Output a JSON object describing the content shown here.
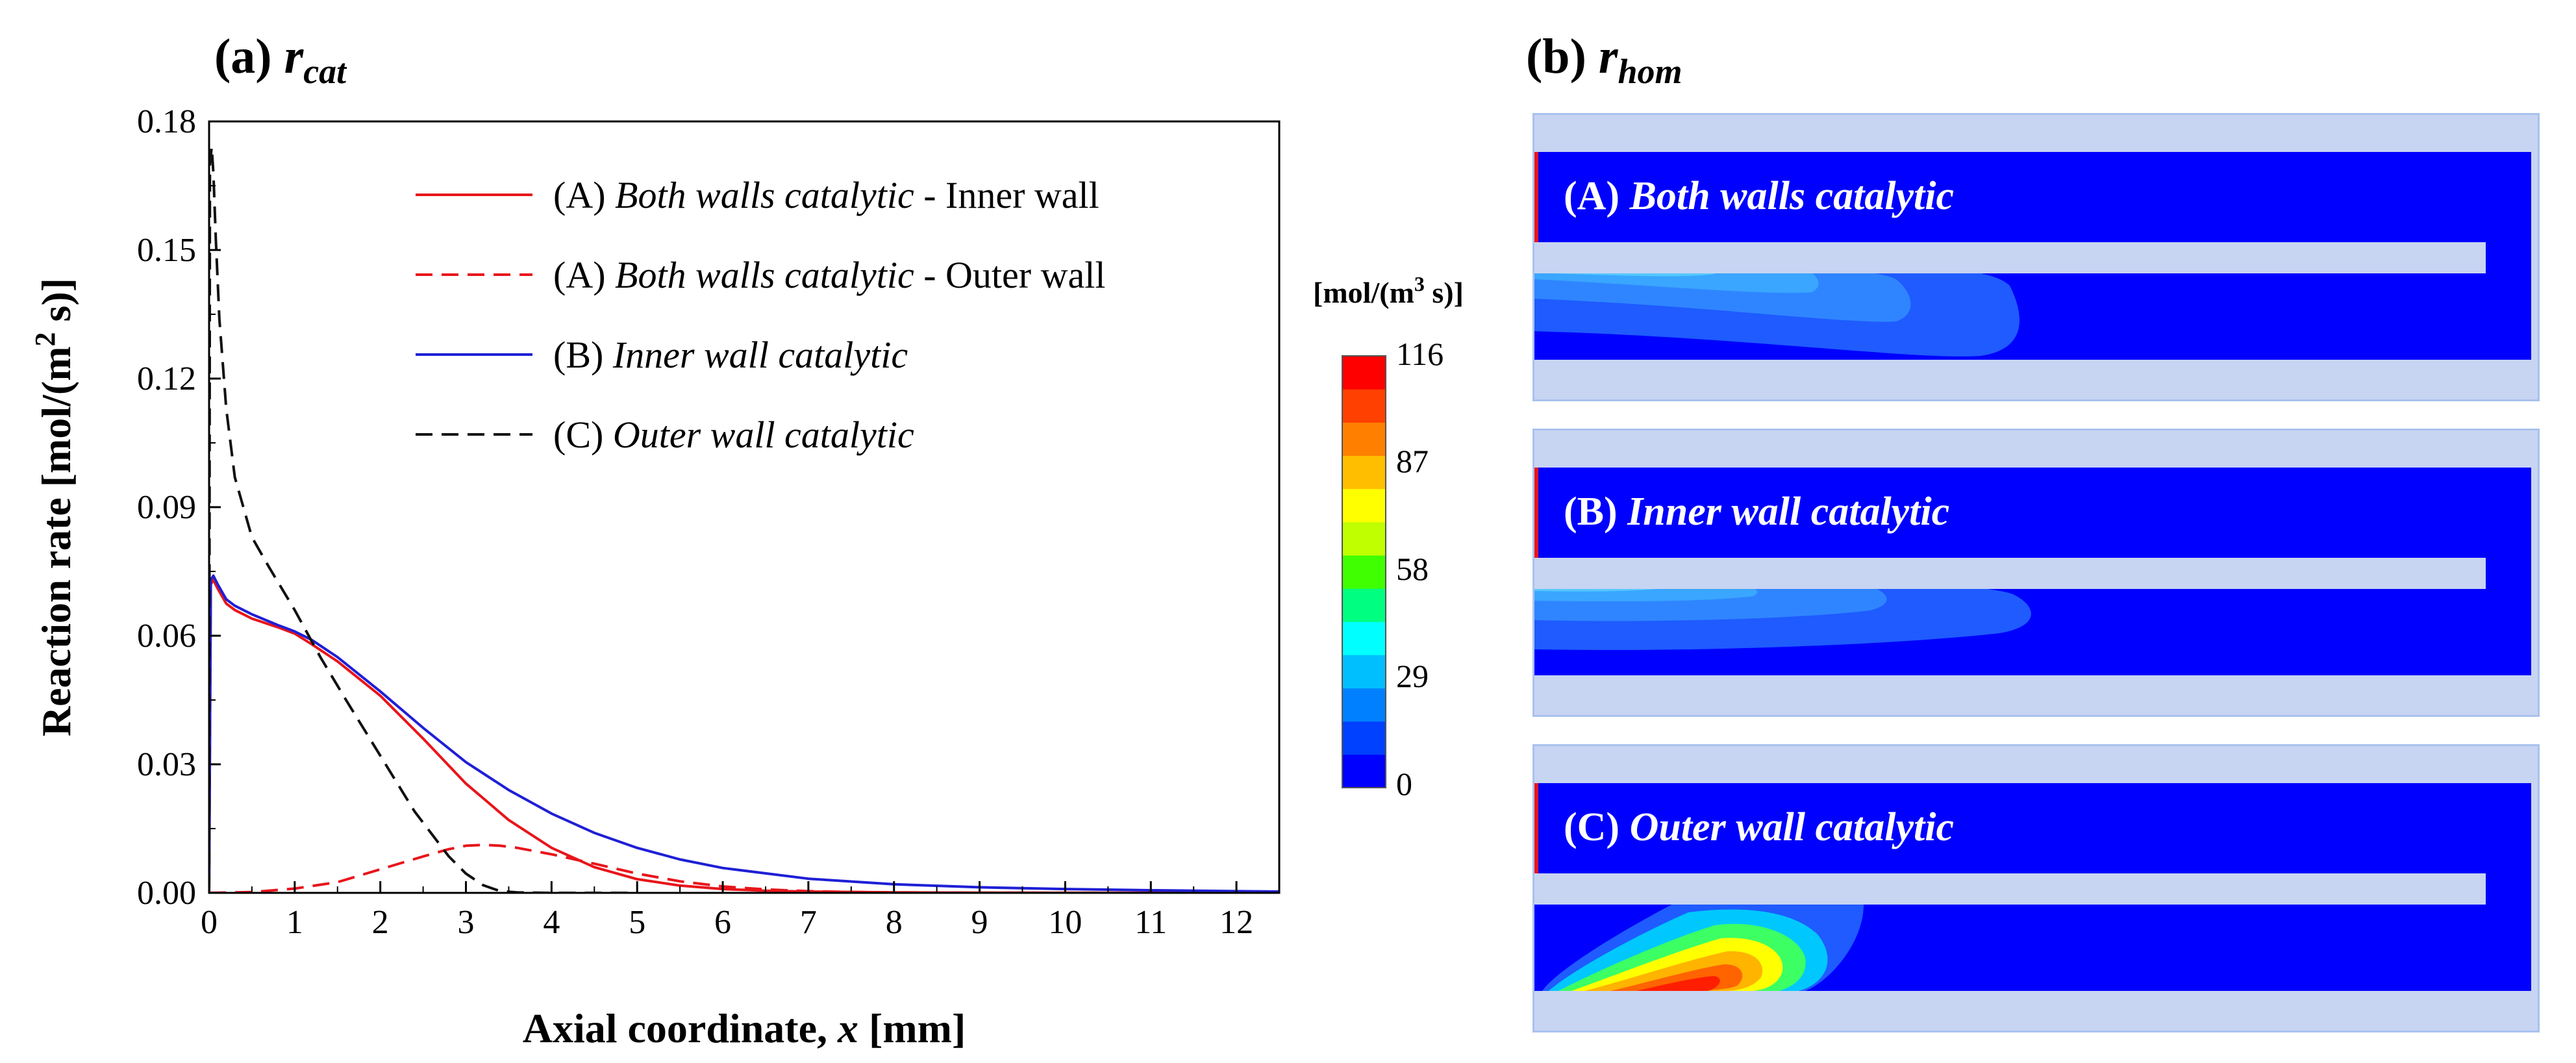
{
  "panel_a": {
    "label": "(a) ",
    "title_main": "r",
    "title_sub": "cat"
  },
  "panel_b": {
    "label": "(b) ",
    "title_main": "r",
    "title_sub": "hom",
    "colorbar": {
      "unit_prefix": "[mol/(m",
      "unit_sup": "3",
      "unit_suffix": " s)]",
      "ticks": [
        "116",
        "87",
        "58",
        "29",
        "0"
      ],
      "min": 0,
      "max": 116,
      "colors": [
        "#0000ff",
        "#0040ff",
        "#0080ff",
        "#00bfff",
        "#00ffff",
        "#00ff80",
        "#40ff00",
        "#bfff00",
        "#ffff00",
        "#ffbf00",
        "#ff8000",
        "#ff4000",
        "#ff0000"
      ]
    },
    "contours": [
      {
        "label_prefix": "(A) ",
        "label_italic": "Both walls catalytic"
      },
      {
        "label_prefix": "(B) ",
        "label_italic": "Inner wall catalytic"
      },
      {
        "label_prefix": "(C) ",
        "label_italic": "Outer wall catalytic"
      }
    ],
    "colors": {
      "background": "#0000ff",
      "wall": "#c7d4f2",
      "frame": "#a9c2ee"
    }
  },
  "chart_data": {
    "type": "line",
    "title": "(a) r_cat",
    "xlabel_prefix": "Axial coordinate, ",
    "xlabel_var": "x",
    "xlabel_suffix": " [mm]",
    "ylabel_prefix": "Reaction rate [mol/(m",
    "ylabel_sup": "2",
    "ylabel_suffix": " s)]",
    "xlim": [
      0,
      12.5
    ],
    "ylim": [
      0,
      0.18
    ],
    "xticks": [
      0,
      1,
      2,
      3,
      4,
      5,
      6,
      7,
      8,
      9,
      10,
      11,
      12
    ],
    "xtick_labels": [
      "0",
      "1",
      "2",
      "3",
      "4",
      "5",
      "6",
      "7",
      "8",
      "9",
      "10",
      "11",
      "12"
    ],
    "yticks": [
      0,
      0.03,
      0.06,
      0.09,
      0.12,
      0.15,
      0.18
    ],
    "ytick_labels": [
      "0.00",
      "0.03",
      "0.06",
      "0.09",
      "0.12",
      "0.15",
      "0.18"
    ],
    "grid": false,
    "legend_position": "top-right",
    "series": [
      {
        "name": "(A) Both walls catalytic - Inner wall",
        "legend_prefix": "(A) ",
        "legend_italic": "Both walls catalytic",
        "legend_suffix": " - Inner wall",
        "color": "#e8151b",
        "dash": "solid",
        "x": [
          0,
          0.02,
          0.05,
          0.1,
          0.2,
          0.3,
          0.5,
          0.8,
          1.0,
          1.2,
          1.5,
          2.0,
          2.5,
          3.0,
          3.5,
          4.0,
          4.5,
          5.0,
          5.5,
          6.0,
          6.5,
          7.0,
          8.0,
          9.0,
          10.0,
          11.0,
          12.5
        ],
        "y": [
          0,
          0.072,
          0.073,
          0.071,
          0.0675,
          0.066,
          0.064,
          0.062,
          0.0605,
          0.058,
          0.054,
          0.046,
          0.036,
          0.0255,
          0.017,
          0.0105,
          0.006,
          0.0032,
          0.0017,
          0.0009,
          0.0005,
          0.0003,
          0.0001,
          5e-05,
          2e-05,
          1e-05,
          0
        ]
      },
      {
        "name": "(A) Both walls catalytic - Outer wall",
        "legend_prefix": "(A) ",
        "legend_italic": "Both walls catalytic",
        "legend_suffix": " - Outer wall",
        "color": "#e8151b",
        "dash": "dashed",
        "x": [
          0,
          0.5,
          1.0,
          1.5,
          2.0,
          2.5,
          2.8,
          3.0,
          3.2,
          3.4,
          3.6,
          4.0,
          4.5,
          5.0,
          5.5,
          6.0,
          6.5,
          7.0,
          7.5,
          8.0,
          9.0,
          10.0,
          12.5
        ],
        "y": [
          0,
          0.0002,
          0.001,
          0.0025,
          0.0055,
          0.0085,
          0.0102,
          0.011,
          0.0112,
          0.011,
          0.0105,
          0.009,
          0.0068,
          0.0045,
          0.0027,
          0.0015,
          0.0008,
          0.0004,
          0.0002,
          0.0001,
          3e-05,
          1e-05,
          0
        ]
      },
      {
        "name": "(B) Inner wall catalytic",
        "legend_prefix": "(B) ",
        "legend_italic": "Inner wall catalytic",
        "legend_suffix": "",
        "color": "#1f1fd6",
        "dash": "solid",
        "x": [
          0,
          0.02,
          0.05,
          0.1,
          0.2,
          0.3,
          0.5,
          0.8,
          1.0,
          1.2,
          1.5,
          2.0,
          2.5,
          3.0,
          3.5,
          4.0,
          4.5,
          5.0,
          5.5,
          6.0,
          7.0,
          8.0,
          9.0,
          10.0,
          11.0,
          12.0,
          12.5
        ],
        "y": [
          0,
          0.073,
          0.074,
          0.072,
          0.0685,
          0.067,
          0.065,
          0.0625,
          0.061,
          0.059,
          0.055,
          0.047,
          0.0385,
          0.0305,
          0.024,
          0.0185,
          0.014,
          0.0105,
          0.0078,
          0.0058,
          0.0033,
          0.002,
          0.0013,
          0.0009,
          0.0006,
          0.0004,
          0.0003
        ]
      },
      {
        "name": "(C) Outer wall catalytic",
        "legend_prefix": "(C) ",
        "legend_italic": "Outer wall catalytic",
        "legend_suffix": "",
        "color": "#111111",
        "dash": "dashed",
        "x": [
          0,
          0.01,
          0.03,
          0.05,
          0.08,
          0.12,
          0.2,
          0.3,
          0.5,
          0.7,
          1.0,
          1.3,
          1.6,
          2.0,
          2.4,
          2.8,
          3.0,
          3.2,
          3.4,
          3.6,
          4.0,
          5.0
        ],
        "y": [
          0,
          0.17,
          0.174,
          0.168,
          0.152,
          0.134,
          0.113,
          0.097,
          0.083,
          0.076,
          0.066,
          0.055,
          0.045,
          0.032,
          0.019,
          0.0085,
          0.0045,
          0.0018,
          0.0004,
          0.0001,
          0,
          0
        ]
      }
    ]
  }
}
